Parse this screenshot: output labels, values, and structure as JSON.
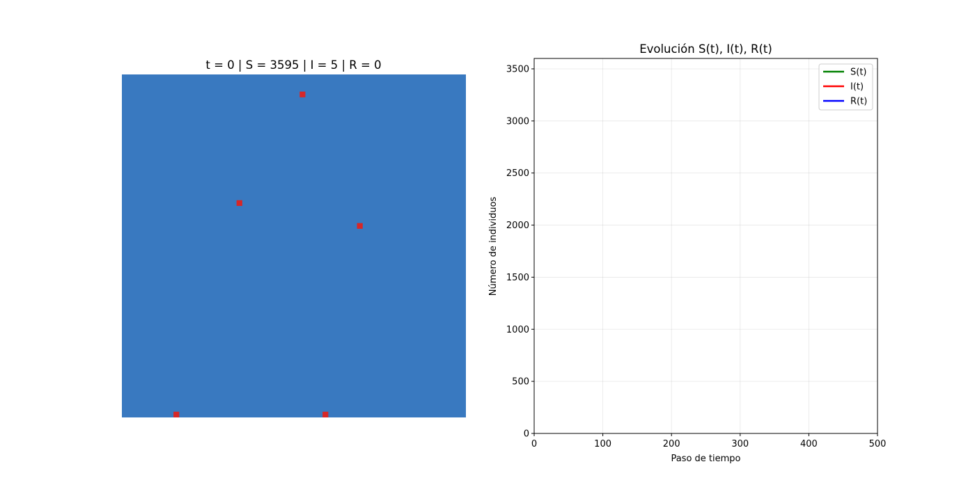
{
  "grid_panel": {
    "title": "t = 0 | S = 3595 | I = 5 | R = 0",
    "susceptible_color": "#3979c0",
    "infected_color": "#d62728",
    "chart_data": {
      "type": "heatmap",
      "grid_size": [
        60,
        60
      ],
      "background_state": "S",
      "infected_cells": [
        [
          31,
          3
        ],
        [
          20,
          22
        ],
        [
          41,
          26
        ],
        [
          9,
          59
        ],
        [
          35,
          59
        ]
      ],
      "counts": {
        "t": 0,
        "S": 3595,
        "I": 5,
        "R": 0
      }
    }
  },
  "line_panel": {
    "chart_data": {
      "type": "line",
      "title": "Evolución S(t), I(t), R(t)",
      "xlabel": "Paso de tiempo",
      "ylabel": "Número de individuos",
      "xlim": [
        0,
        500
      ],
      "ylim": [
        0,
        3600
      ],
      "x_ticks": [
        0,
        100,
        200,
        300,
        400,
        500
      ],
      "y_ticks": [
        0,
        500,
        1000,
        1500,
        2000,
        2500,
        3000,
        3500
      ],
      "grid": true,
      "legend_position": "top-right",
      "series": [
        {
          "name": "S(t)",
          "color": "#008000",
          "x": [],
          "y": []
        },
        {
          "name": "I(t)",
          "color": "#ff0000",
          "x": [],
          "y": []
        },
        {
          "name": "R(t)",
          "color": "#0000ff",
          "x": [],
          "y": []
        }
      ]
    }
  }
}
